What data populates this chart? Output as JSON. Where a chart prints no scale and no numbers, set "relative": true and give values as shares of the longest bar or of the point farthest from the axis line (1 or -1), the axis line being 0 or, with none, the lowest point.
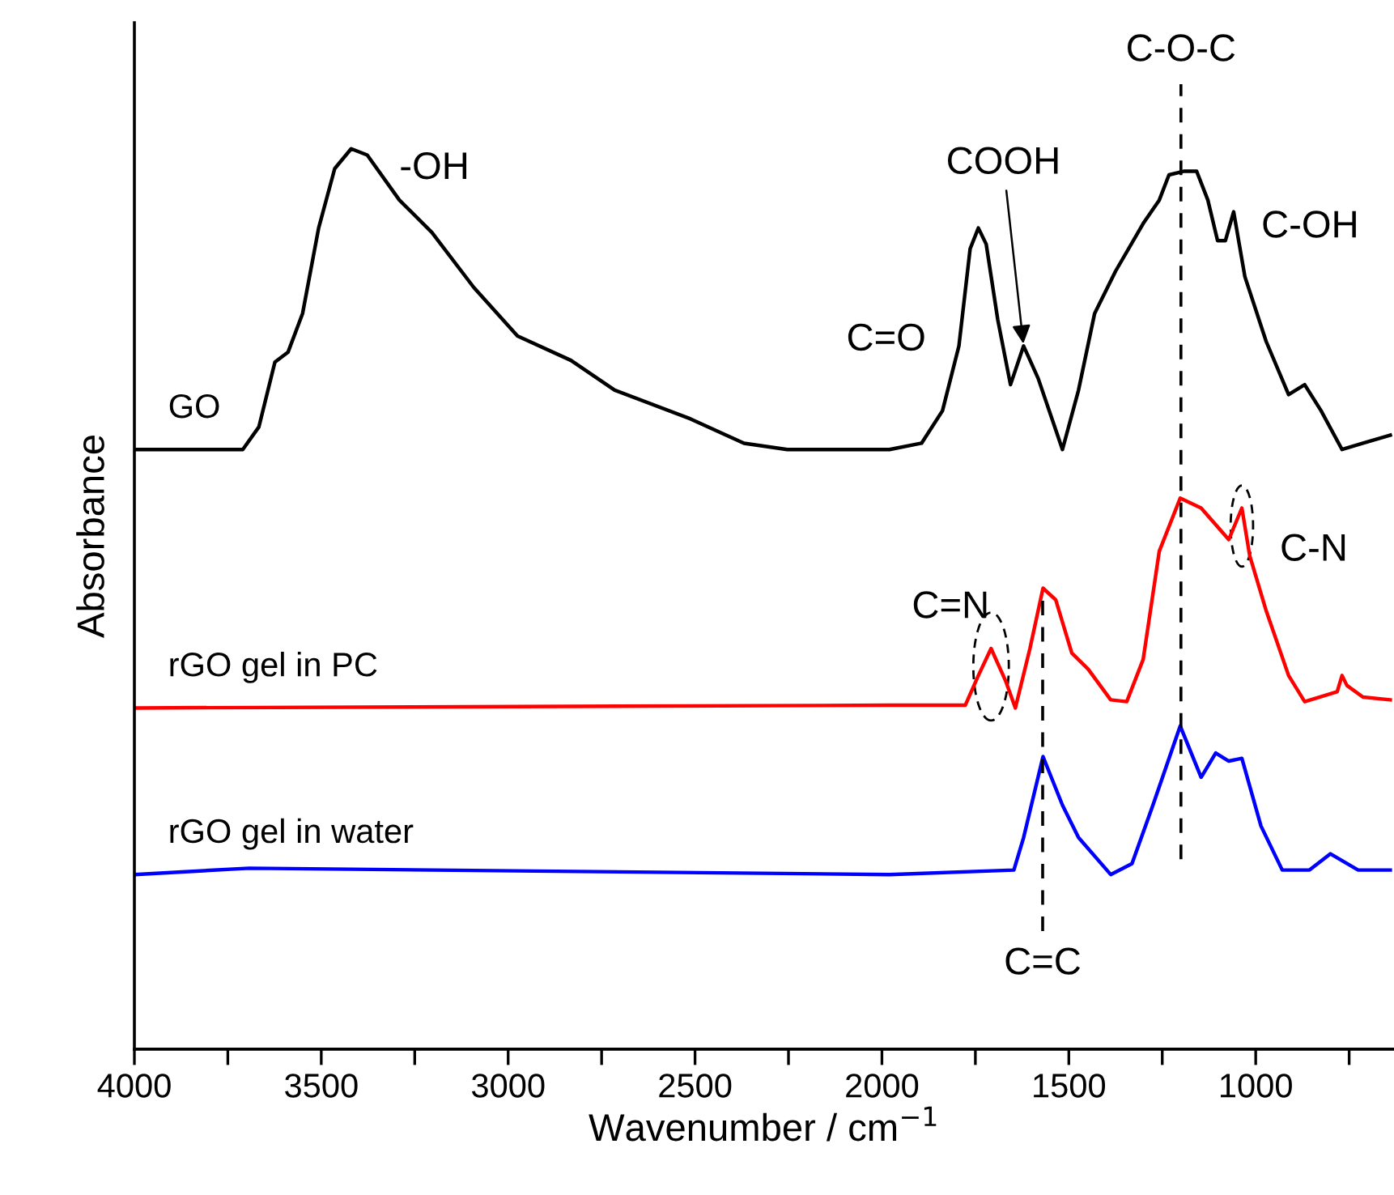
{
  "chart_data": {
    "type": "line",
    "relative": true,
    "xlabel": "Wavenumber / cm$^{−1}$",
    "ylabel": "Absorbance",
    "xlim": [
      4000,
      630
    ],
    "xticks": [
      4000,
      {
        "value": 3750,
        "label": null
      },
      3500,
      {
        "value": 3250,
        "label": null
      },
      3000,
      {
        "value": 2750,
        "label": null
      },
      2500,
      {
        "value": 2250,
        "label": null
      },
      2000,
      {
        "value": 1750,
        "label": null
      },
      1500,
      {
        "value": 1250,
        "label": null
      },
      1000,
      {
        "value": 750,
        "label": null
      }
    ],
    "grid": false,
    "legend": false,
    "marker": "none",
    "line_style": "solid",
    "series": [
      {
        "name": "GO",
        "color": "#000000",
        "x": [
          4000,
          3710,
          3667,
          3624,
          3589,
          3550,
          3507,
          3464,
          3420,
          3377,
          3291,
          3204,
          3092,
          2975,
          2832,
          2715,
          2512,
          2369,
          2253,
          1980,
          1894,
          1838,
          1794,
          1764,
          1742,
          1721,
          1690,
          1656,
          1621,
          1582,
          1517,
          1474,
          1431,
          1375,
          1301,
          1258,
          1232,
          1193,
          1158,
          1128,
          1102,
          1081,
          1059,
          1029,
          972,
          912,
          869,
          825,
          769,
          713,
          640
        ],
        "values": [
          0.666,
          0.666,
          0.691,
          0.763,
          0.774,
          0.817,
          0.912,
          0.978,
          1.0,
          0.993,
          0.943,
          0.907,
          0.846,
          0.792,
          0.765,
          0.732,
          0.7,
          0.673,
          0.666,
          0.666,
          0.673,
          0.709,
          0.781,
          0.889,
          0.912,
          0.894,
          0.81,
          0.738,
          0.781,
          0.745,
          0.666,
          0.732,
          0.817,
          0.864,
          0.917,
          0.943,
          0.971,
          0.975,
          0.975,
          0.943,
          0.898,
          0.898,
          0.93,
          0.858,
          0.786,
          0.727,
          0.738,
          0.709,
          0.666,
          0.673,
          0.682
        ]
      },
      {
        "name": "rGO gel in PC",
        "color": "#ff0000",
        "x": [
          4000,
          1980,
          1777,
          1742,
          1708,
          1669,
          1643,
          1604,
          1569,
          1535,
          1492,
          1448,
          1388,
          1345,
          1301,
          1258,
          1202,
          1146,
          1072,
          1037,
          1016,
          972,
          912,
          869,
          782,
          769,
          756,
          713,
          640
        ],
        "values": [
          0.379,
          0.382,
          0.382,
          0.415,
          0.445,
          0.409,
          0.379,
          0.445,
          0.512,
          0.499,
          0.44,
          0.422,
          0.388,
          0.386,
          0.433,
          0.553,
          0.612,
          0.601,
          0.566,
          0.601,
          0.548,
          0.487,
          0.415,
          0.386,
          0.397,
          0.415,
          0.404,
          0.391,
          0.388
        ]
      },
      {
        "name": "rGO gel in water",
        "color": "#0000ff",
        "x": [
          4000,
          3693,
          1980,
          1647,
          1621,
          1569,
          1517,
          1474,
          1388,
          1331,
          1275,
          1202,
          1146,
          1107,
          1072,
          1037,
          986,
          929,
          856,
          800,
          726,
          640
        ],
        "values": [
          0.194,
          0.201,
          0.194,
          0.199,
          0.235,
          0.325,
          0.271,
          0.235,
          0.194,
          0.206,
          0.271,
          0.359,
          0.302,
          0.329,
          0.32,
          0.323,
          0.248,
          0.199,
          0.199,
          0.217,
          0.199,
          0.199
        ]
      }
    ],
    "ref_lines": [
      {
        "axis": "x",
        "value": 1200,
        "label": "C-O-C",
        "line_style": "dashed",
        "color": "#000000"
      },
      {
        "axis": "x",
        "value": 1570,
        "label": "C=C",
        "line_style": "dashed",
        "color": "#000000"
      }
    ],
    "annotations": [
      {
        "text": "-OH",
        "x": 3420,
        "y": 1.0
      },
      {
        "text": "COOH",
        "x": 1621,
        "y": 0.781
      },
      {
        "text": "C=O",
        "x": 1742,
        "y": 0.912
      },
      {
        "text": "C-OH",
        "x": 1059,
        "y": 0.93
      },
      {
        "text": "C=N",
        "x": 1708,
        "y": 0.445
      },
      {
        "text": "C-N",
        "x": 1037,
        "y": 0.601
      }
    ]
  }
}
